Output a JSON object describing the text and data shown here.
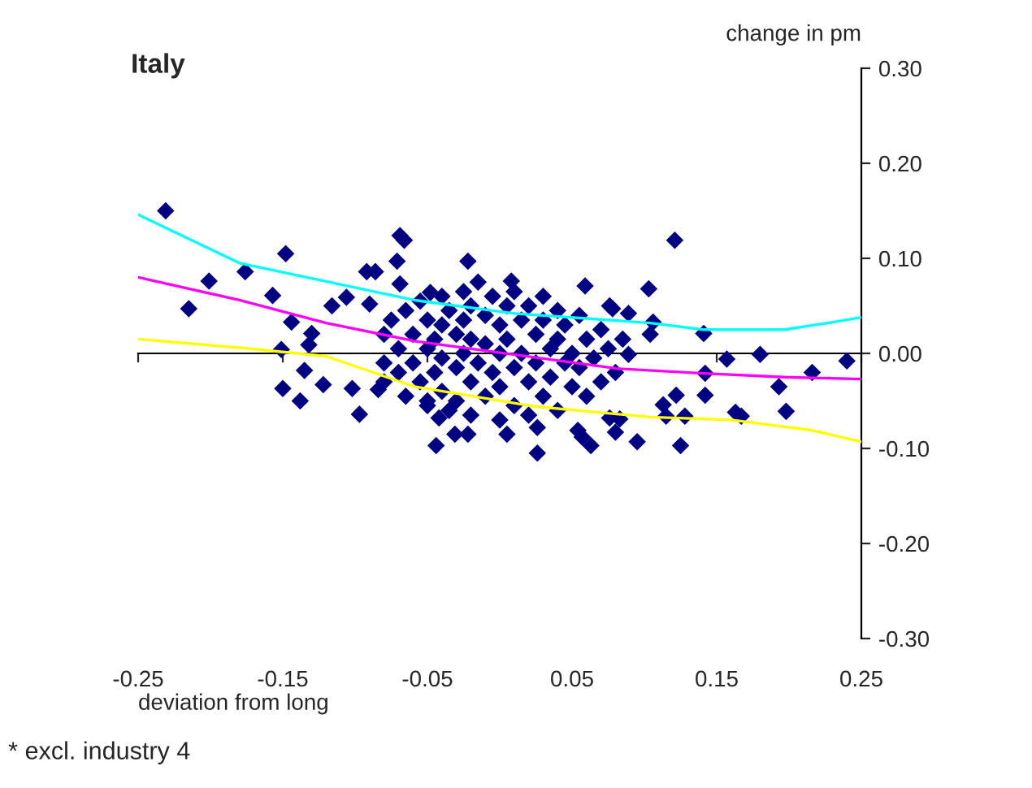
{
  "chart_data": {
    "type": "scatter",
    "title": "Italy",
    "xlabel": "deviation from long",
    "ylabel": "change in pm",
    "annotations": [
      "* excl. industry 4"
    ],
    "xlim": [
      -0.25,
      0.25
    ],
    "ylim": [
      -0.3,
      0.3
    ],
    "xticks": [
      -0.25,
      -0.15,
      -0.05,
      0.05,
      0.15,
      0.25
    ],
    "yticks": [
      {
        "value": -0.3,
        "label": "-0.30"
      },
      {
        "value": -0.2,
        "label": "-0.20"
      },
      {
        "value": -0.1,
        "label": "-0.10"
      },
      {
        "value": 0,
        "label": "0.00"
      },
      {
        "value": 0.1,
        "label": "0.10"
      },
      {
        "value": 0.2,
        "label": "0.20"
      },
      {
        "value": 0.3,
        "label": "0.30"
      }
    ],
    "marker": "diamond",
    "series": [
      {
        "color": "#000080",
        "x": [
          -0.231,
          -0.201,
          -0.215,
          -0.176,
          -0.148,
          -0.157,
          -0.144,
          -0.151,
          -0.132,
          -0.15,
          -0.138,
          -0.122,
          -0.097,
          -0.044,
          -0.069,
          -0.066,
          -0.071,
          -0.092,
          -0.086,
          -0.069,
          -0.022,
          0.121,
          0.008,
          0.059,
          0.103,
          0.076,
          0.078,
          0.089,
          0.106,
          0.104,
          0.141,
          0.089,
          0.157,
          0.18,
          0.24,
          0.142,
          0.216,
          0.193,
          0.122,
          0.142,
          0.198,
          0.163,
          0.167,
          0.113,
          0.115,
          0.128,
          0.083,
          0.076,
          0.054,
          0.057,
          0.026,
          0.005,
          0.063,
          0.08,
          0.095,
          0.125,
          0.026,
          -0.116,
          -0.106,
          -0.13,
          -0.135,
          -0.102,
          -0.084,
          -0.05,
          -0.042,
          -0.031,
          -0.022,
          -0.048,
          -0.09,
          -0.08,
          -0.08,
          -0.08,
          -0.075,
          -0.07,
          -0.07,
          -0.065,
          -0.065,
          -0.06,
          -0.06,
          -0.055,
          -0.055,
          -0.05,
          -0.05,
          -0.05,
          -0.045,
          -0.045,
          -0.04,
          -0.04,
          -0.04,
          -0.04,
          -0.035,
          -0.035,
          -0.03,
          -0.03,
          -0.03,
          -0.025,
          -0.025,
          -0.025,
          -0.02,
          -0.02,
          -0.02,
          -0.02,
          -0.015,
          -0.015,
          -0.01,
          -0.01,
          -0.01,
          -0.005,
          -0.005,
          0,
          0,
          0,
          0,
          0.005,
          0.005,
          0.01,
          0.01,
          0.01,
          0.015,
          0.015,
          0.02,
          0.02,
          0.02,
          0.025,
          0.025,
          0.03,
          0.03,
          0.03,
          0.035,
          0.035,
          0.04,
          0.04,
          0.04,
          0.045,
          0.045,
          0.05,
          0.05,
          0.055,
          0.055,
          0.06,
          0.06,
          0.065,
          0.07,
          0.07,
          0.075,
          0.08,
          0.085
        ],
        "values": [
          0.15,
          0.076,
          0.047,
          0.086,
          0.105,
          0.061,
          0.033,
          0.004,
          0.009,
          -0.037,
          -0.05,
          -0.033,
          -0.064,
          -0.097,
          0.124,
          0.119,
          0.097,
          0.086,
          0.086,
          0.073,
          0.097,
          0.119,
          0.076,
          0.071,
          0.068,
          0.05,
          0.047,
          0.042,
          0.033,
          0.02,
          0.021,
          -0.001,
          -0.006,
          -0.001,
          -0.008,
          -0.021,
          -0.02,
          -0.035,
          -0.044,
          -0.044,
          -0.061,
          -0.062,
          -0.066,
          -0.054,
          -0.066,
          -0.066,
          -0.069,
          -0.068,
          -0.081,
          -0.088,
          -0.078,
          -0.085,
          -0.097,
          -0.083,
          -0.093,
          -0.097,
          -0.105,
          0.05,
          0.059,
          0.021,
          -0.018,
          -0.037,
          -0.038,
          -0.05,
          -0.068,
          -0.085,
          -0.085,
          0.064,
          0.052,
          0.02,
          -0.01,
          -0.03,
          0.035,
          0.005,
          -0.02,
          0.045,
          -0.045,
          0.02,
          -0.01,
          0.055,
          -0.03,
          0.035,
          0.005,
          -0.055,
          0.015,
          -0.02,
          0.06,
          0.03,
          -0.005,
          -0.04,
          0.045,
          -0.06,
          0.02,
          -0.015,
          -0.05,
          0.065,
          0.035,
          0.0,
          0.05,
          0.015,
          -0.03,
          -0.065,
          0.075,
          -0.01,
          0.04,
          0.01,
          -0.045,
          0.06,
          -0.02,
          0.03,
          0.0,
          -0.035,
          -0.07,
          0.05,
          0.015,
          -0.015,
          -0.055,
          0.065,
          0.035,
          0.0,
          0.05,
          -0.03,
          -0.065,
          0.02,
          -0.01,
          0.06,
          0.035,
          -0.045,
          0.005,
          -0.025,
          0.045,
          0.015,
          -0.06,
          -0.01,
          0.03,
          0.0,
          -0.035,
          0.04,
          -0.015,
          0.015,
          -0.045,
          -0.005,
          0.025,
          -0.03,
          0.005,
          -0.02,
          0.015
        ]
      },
      {
        "type": "line",
        "color": "#00ffff",
        "marker": "none",
        "x": [
          -0.25,
          -0.18,
          -0.059,
          0.01,
          0.104,
          0.141,
          0.197,
          0.231,
          0.25
        ],
        "values": [
          0.146,
          0.095,
          0.056,
          0.042,
          0.032,
          0.025,
          0.025,
          0.033,
          0.038
        ]
      },
      {
        "type": "line",
        "color": "#ff00ff",
        "marker": "none",
        "x": [
          -0.25,
          -0.18,
          -0.12,
          -0.059,
          0.081,
          0.141,
          0.197,
          0.25
        ],
        "values": [
          0.08,
          0.056,
          0.032,
          0.013,
          -0.016,
          -0.021,
          -0.025,
          -0.027
        ]
      },
      {
        "type": "line",
        "color": "#ffff00",
        "marker": "none",
        "x": [
          -0.25,
          -0.18,
          -0.12,
          -0.059,
          0.025,
          0.104,
          0.16,
          0.216,
          0.25
        ],
        "values": [
          0.015,
          0.006,
          -0.003,
          -0.035,
          -0.056,
          -0.067,
          -0.07,
          -0.081,
          -0.093
        ]
      }
    ]
  }
}
